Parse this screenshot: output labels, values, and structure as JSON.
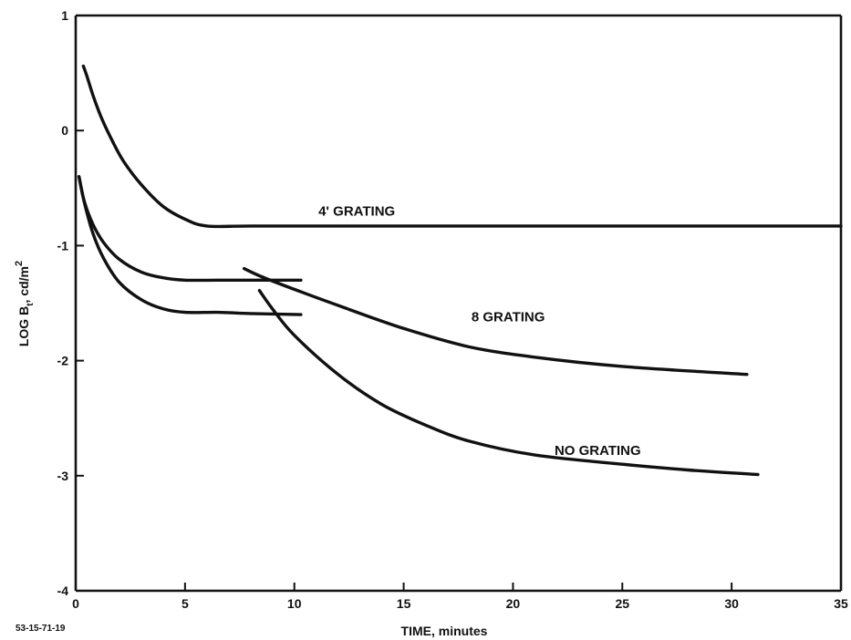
{
  "chart_data": {
    "type": "line",
    "xlabel": "TIME, minutes",
    "ylabel": "LOG B",
    "ylabel_subscript": "t",
    "ylabel_unit": ", cd/m",
    "ylabel_unit_superscript": "2",
    "xlim": [
      0,
      35
    ],
    "ylim": [
      -4,
      1
    ],
    "x_ticks": [
      0,
      5,
      10,
      15,
      20,
      25,
      30,
      35
    ],
    "y_ticks": [
      1,
      0,
      -1,
      -2,
      -3,
      -4
    ],
    "x_tick_labels": [
      "0",
      "5",
      "10",
      "15",
      "20",
      "25",
      "30",
      "35"
    ],
    "y_tick_labels": [
      "1",
      "0",
      "-1",
      "-2",
      "-3",
      "-4"
    ],
    "grid": false,
    "legend": "none",
    "figure_id": "53-15-71-19",
    "series": [
      {
        "label": "4' GRATING",
        "label_at": {
          "x": 11.1,
          "y": -0.7
        },
        "segments": [
          {
            "x": [
              0.35,
              0.5,
              0.8,
              1.2,
              1.7,
              2.2,
              3.0,
              4.0,
              5.0,
              6.0,
              8.0,
              12.0,
              20.0,
              30.0,
              35.0
            ],
            "y": [
              0.56,
              0.48,
              0.3,
              0.1,
              -0.1,
              -0.27,
              -0.47,
              -0.66,
              -0.77,
              -0.83,
              -0.83,
              -0.83,
              -0.83,
              -0.83,
              -0.83
            ]
          }
        ]
      },
      {
        "label": "8 GRATING",
        "label_at": {
          "x": 18.1,
          "y": -1.62
        },
        "segments": [
          {
            "x": [
              0.15,
              0.4,
              0.8,
              1.3,
              2.0,
              3.0,
              4.0,
              5.0,
              6.5,
              8.0,
              10.3
            ],
            "y": [
              -0.4,
              -0.62,
              -0.82,
              -0.98,
              -1.12,
              -1.23,
              -1.28,
              -1.3,
              -1.3,
              -1.3,
              -1.3
            ]
          },
          {
            "x": [
              7.7,
              8.5,
              10.0,
              12.0,
              15.0,
              18.0,
              21.0,
              25.0,
              30.7
            ],
            "y": [
              -1.2,
              -1.27,
              -1.38,
              -1.52,
              -1.72,
              -1.88,
              -1.97,
              -2.05,
              -2.12
            ]
          }
        ]
      },
      {
        "label": "NO GRATING",
        "label_at": {
          "x": 21.9,
          "y": -2.78
        },
        "segments": [
          {
            "x": [
              0.15,
              0.4,
              0.8,
              1.3,
              2.0,
              3.0,
              4.0,
              5.0,
              6.5,
              8.0,
              10.3
            ],
            "y": [
              -0.4,
              -0.63,
              -0.9,
              -1.12,
              -1.32,
              -1.47,
              -1.55,
              -1.58,
              -1.58,
              -1.59,
              -1.6
            ]
          },
          {
            "x": [
              8.4,
              9.0,
              10.0,
              12.0,
              14.0,
              16.0,
              18.0,
              21.0,
              25.0,
              28.0,
              31.2
            ],
            "y": [
              -1.39,
              -1.55,
              -1.78,
              -2.12,
              -2.38,
              -2.56,
              -2.7,
              -2.82,
              -2.9,
              -2.95,
              -2.99
            ]
          }
        ]
      }
    ]
  }
}
